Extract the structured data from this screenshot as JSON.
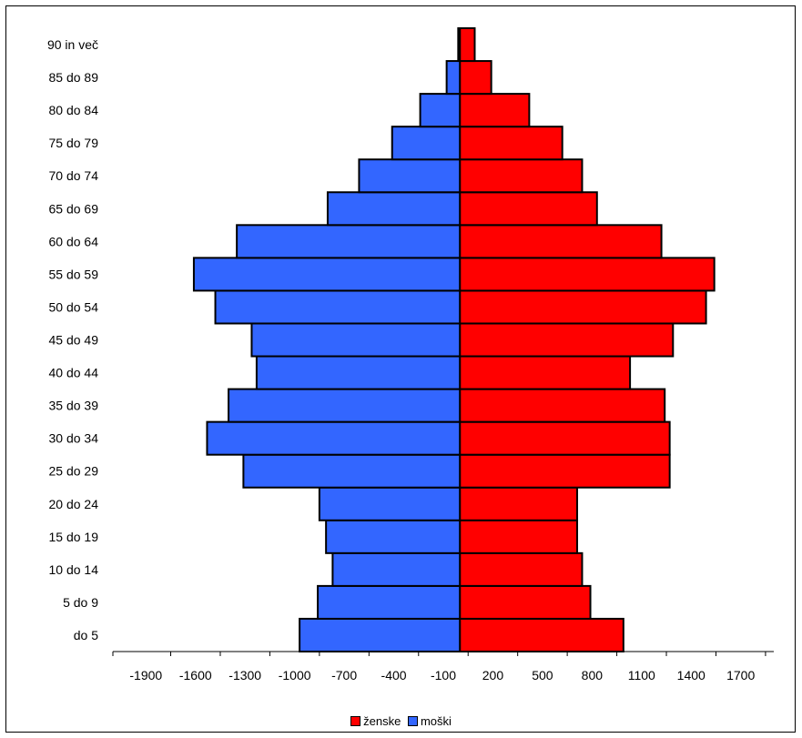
{
  "chart_data": {
    "type": "bar",
    "orientation": "horizontal",
    "categories": [
      "do 5",
      "5 do 9",
      "10 do 14",
      "15 do 19",
      "20 do 24",
      "25 do 29",
      "30 do 34",
      "35 do 39",
      "40 do 44",
      "45 do 49",
      "50 do 54",
      "55 do 59",
      "60 do 64",
      "65 do 69",
      "70 do 74",
      "75 do 79",
      "80 do 84",
      "85 do 89",
      "90 in več"
    ],
    "series": [
      {
        "name": "ženske",
        "color": "#ff0000",
        "values": [
          990,
          790,
          740,
          710,
          710,
          1270,
          1270,
          1240,
          1030,
          1290,
          1490,
          1540,
          1220,
          830,
          740,
          620,
          420,
          190,
          90
        ]
      },
      {
        "name": "moški",
        "color": "#3366ff",
        "values": [
          -970,
          -860,
          -770,
          -810,
          -850,
          -1310,
          -1530,
          -1400,
          -1230,
          -1260,
          -1480,
          -1610,
          -1350,
          -800,
          -610,
          -410,
          -240,
          -80,
          -10
        ]
      }
    ],
    "xticks": [
      -1900,
      -1600,
      -1300,
      -1000,
      -700,
      -400,
      -100,
      200,
      500,
      800,
      1100,
      1400,
      1700
    ],
    "xlim": [
      -2100,
      1900
    ],
    "title": "",
    "xlabel": "",
    "ylabel": "",
    "grid": false,
    "legend_position": "bottom"
  }
}
